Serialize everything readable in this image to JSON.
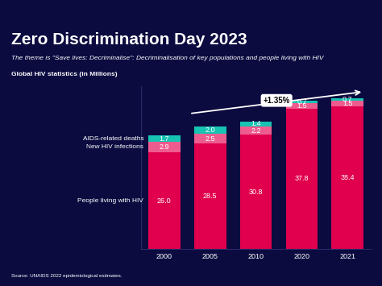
{
  "chart_data": {
    "type": "bar",
    "title": "Zero Discrimination Day 2023",
    "subtitle": "The theme is \"Save lives: Decriminalise\": Decriminalisation of key populations and people living with HIV",
    "ylabel": "Global HIV statistics (in Millions)",
    "annotation": "+1.35%",
    "source": "Source: UNAIDS 2022 epidemiological estimates.",
    "categories": [
      "2000",
      "2005",
      "2010",
      "2020",
      "2021"
    ],
    "series": [
      {
        "name": "People living with HIV",
        "color": "#e0004d",
        "values": [
          26.0,
          28.5,
          30.8,
          37.8,
          38.4
        ]
      },
      {
        "name": "New HIV infections",
        "color": "#ee5c8f",
        "values": [
          2.9,
          2.5,
          2.2,
          1.5,
          1.5
        ]
      },
      {
        "name": "AIDS-related deaths",
        "color": "#17c3b2",
        "values": [
          1.7,
          2.0,
          1.4,
          0.7,
          0.7
        ]
      }
    ],
    "stacked": true,
    "data_labels": true,
    "tick_labels": "x",
    "grid": false,
    "ylim": [
      0,
      44
    ],
    "yticks": []
  }
}
